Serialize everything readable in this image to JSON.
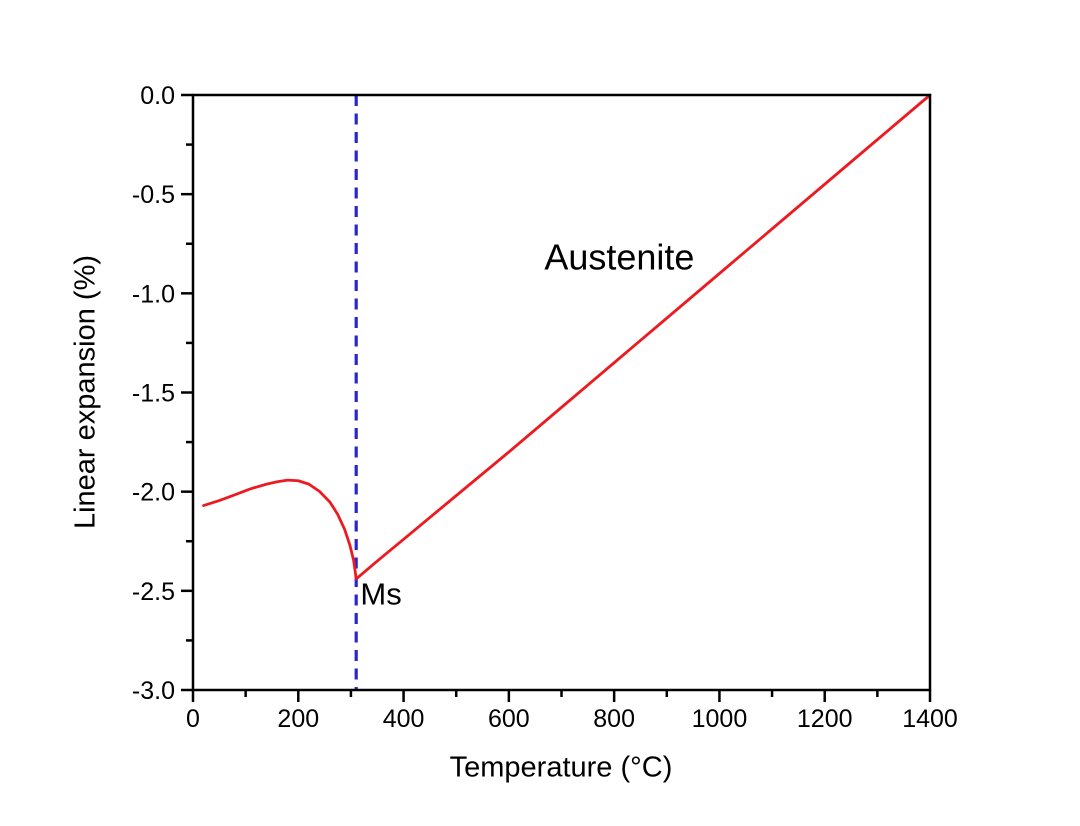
{
  "chart_data": {
    "type": "line",
    "title": "",
    "xlabel": "Temperature (°C)",
    "ylabel": "Linear expansion (%)",
    "xlim": [
      0,
      1400
    ],
    "ylim": [
      -3.0,
      0.0
    ],
    "grid": false,
    "legend": "none",
    "x_ticks": {
      "major_values": [
        0,
        200,
        400,
        600,
        800,
        1000,
        1200,
        1400
      ],
      "major_labels": [
        "0",
        "200",
        "400",
        "600",
        "800",
        "1000",
        "1200",
        "1400"
      ],
      "minor_values": [
        100,
        300,
        500,
        700,
        900,
        1100,
        1300
      ]
    },
    "y_ticks": {
      "major_values": [
        0.0,
        -0.5,
        -1.0,
        -1.5,
        -2.0,
        -2.5,
        -3.0
      ],
      "major_labels": [
        "0.0",
        "-0.5",
        "-1.0",
        "-1.5",
        "-2.0",
        "-2.5",
        "-3.0"
      ],
      "minor_values": [
        -0.25,
        -0.75,
        -1.25,
        -1.75,
        -2.25,
        -2.75
      ]
    },
    "series": [
      {
        "name": "cooling-dilatometry-curve",
        "color": "#ec1b21",
        "stroke_px": 2.8,
        "x": [
          20,
          50,
          80,
          110,
          140,
          160,
          180,
          200,
          220,
          240,
          260,
          275,
          288,
          298,
          305,
          308,
          310,
          350,
          400,
          500,
          600,
          700,
          800,
          900,
          1000,
          1100,
          1200,
          1300,
          1400
        ],
        "y": [
          -2.07,
          -2.045,
          -2.015,
          -1.985,
          -1.962,
          -1.95,
          -1.942,
          -1.945,
          -1.962,
          -1.998,
          -2.052,
          -2.115,
          -2.19,
          -2.27,
          -2.345,
          -2.4,
          -2.44,
          -2.35,
          -2.24,
          -2.02,
          -1.8,
          -1.575,
          -1.35,
          -1.125,
          -0.9,
          -0.675,
          -0.45,
          -0.225,
          0.0
        ]
      }
    ],
    "reference_line": {
      "name": "Ms-line",
      "orientation": "vertical",
      "x": 310,
      "color": "#2727cb",
      "style": "dashed",
      "stroke_px": 3.2,
      "dash_px": "11 7.5"
    },
    "annotations": [
      {
        "label": "Austenite",
        "x": 810,
        "y": -0.88,
        "anchor": "middle",
        "font_px": 36
      },
      {
        "label": "Ms",
        "x": 318,
        "y": -2.57,
        "anchor": "start",
        "font_px": 31
      }
    ],
    "axis_color": "#000000",
    "tick_label_font_px": 25
  }
}
